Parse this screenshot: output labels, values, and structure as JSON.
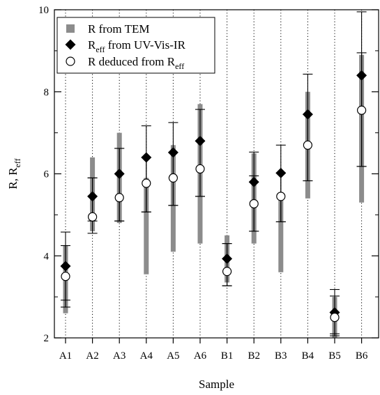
{
  "chart_data": {
    "type": "scatter",
    "xlabel": "Sample",
    "ylabel": {
      "base": "R, R",
      "sub": "eff"
    },
    "categories": [
      "A1",
      "A2",
      "A3",
      "A4",
      "A5",
      "A6",
      "B1",
      "B2",
      "B3",
      "B4",
      "B5",
      "B6"
    ],
    "ylim": [
      2,
      10
    ],
    "yticks": [
      2,
      4,
      6,
      8,
      10
    ],
    "grid": {
      "x_dotted": true,
      "y": false
    },
    "legend": {
      "placement": "top-left",
      "entries": [
        {
          "key": "tem",
          "marker": "gray-square",
          "parts": [
            "R from TEM"
          ]
        },
        {
          "key": "reff",
          "marker": "black-diamond",
          "parts": [
            "R",
            "eff",
            " from UV-Vis-IR"
          ]
        },
        {
          "key": "rdeduced",
          "marker": "white-circle",
          "parts": [
            "R deduced from R",
            "eff"
          ]
        }
      ]
    },
    "colors": {
      "tem": "#8c8c8c",
      "marker": "#000000",
      "open_fill": "#ffffff",
      "grid": "#000000"
    },
    "series": [
      {
        "name": "R from TEM",
        "style": "range-bar",
        "low": [
          2.6,
          4.6,
          4.8,
          3.55,
          4.1,
          4.3,
          3.35,
          4.3,
          3.6,
          5.4,
          2.0,
          5.3
        ],
        "high": [
          4.25,
          6.4,
          7.0,
          5.9,
          6.7,
          7.7,
          4.5,
          6.5,
          5.4,
          8.0,
          3.0,
          8.9
        ]
      },
      {
        "name": "Reff from UV-Vis-IR",
        "style": "diamond",
        "values": [
          3.75,
          5.45,
          6.0,
          6.4,
          6.52,
          6.8,
          3.93,
          5.8,
          6.02,
          7.45,
          2.62,
          8.4
        ],
        "err_low": [
          2.92,
          4.85,
          4.85,
          5.07,
          5.23,
          5.45,
          3.27,
          4.6,
          4.83,
          5.83,
          2.1,
          6.18
        ],
        "err_high": [
          4.58,
          5.9,
          6.62,
          7.17,
          7.25,
          7.57,
          4.3,
          6.53,
          6.7,
          8.43,
          3.18,
          9.95
        ]
      },
      {
        "name": "R deduced from Reff",
        "style": "circle",
        "values": [
          3.5,
          4.95,
          5.42,
          5.77,
          5.9,
          6.12,
          3.62,
          5.27,
          5.45,
          6.7,
          2.5,
          7.55
        ],
        "err_low": [
          2.75,
          4.55,
          4.85,
          5.07,
          5.23,
          5.45,
          3.27,
          4.6,
          4.83,
          5.83,
          2.05,
          6.18
        ],
        "err_high": [
          4.25,
          5.9,
          6.62,
          6.4,
          6.52,
          6.8,
          4.3,
          5.95,
          6.02,
          7.45,
          3.02,
          8.95
        ]
      }
    ]
  }
}
